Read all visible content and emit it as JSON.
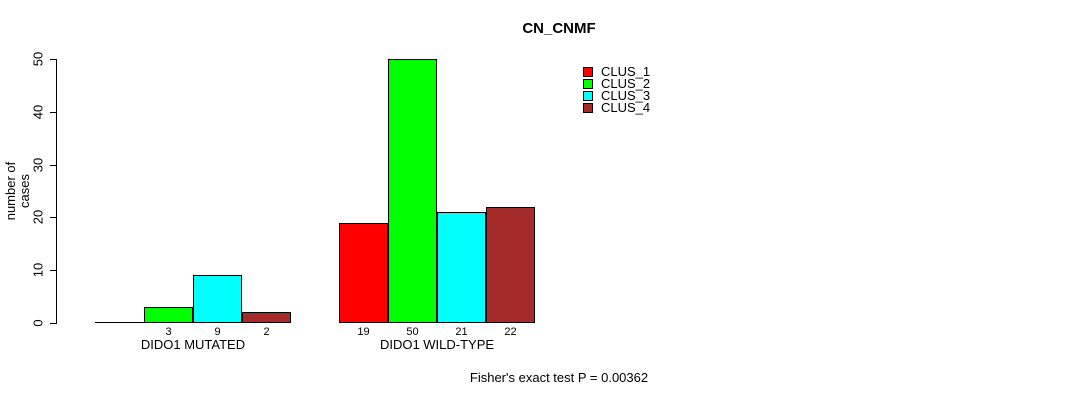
{
  "page": {
    "background": "#FFFFFF"
  },
  "header": {
    "title": "CN_CNMF"
  },
  "legend": {
    "items": [
      {
        "label": "CLUS_1",
        "color": "#FF0000"
      },
      {
        "label": "CLUS_2",
        "color": "#00FF00"
      },
      {
        "label": "CLUS_3",
        "color": "#00FFFF"
      },
      {
        "label": "CLUS_4",
        "color": "#A52A2A"
      }
    ]
  },
  "footer": {
    "caption": "Fisher's exact test P = 0.00362"
  },
  "chart_data": {
    "type": "bar",
    "title": "CN_CNMF",
    "xlabel": "",
    "ylabel": "number of cases",
    "ylim": [
      0,
      50
    ],
    "yticks": [
      0,
      10,
      20,
      30,
      40,
      50
    ],
    "grid": false,
    "legend_position": "top-right",
    "categories": [
      "DIDO1 MUTATED",
      "DIDO1 WILD-TYPE"
    ],
    "series": [
      {
        "name": "CLUS_1",
        "color": "#FF0000",
        "values": [
          0,
          19
        ]
      },
      {
        "name": "CLUS_2",
        "color": "#00FF00",
        "values": [
          3,
          50
        ]
      },
      {
        "name": "CLUS_3",
        "color": "#00FFFF",
        "values": [
          9,
          21
        ]
      },
      {
        "name": "CLUS_4",
        "color": "#A52A2A",
        "values": [
          2,
          22
        ]
      }
    ],
    "bar_value_labels": [
      [
        "",
        "3",
        "9",
        "2"
      ],
      [
        "19",
        "50",
        "21",
        "22"
      ]
    ],
    "bar_border_color": "#000000",
    "annotation": "Fisher's exact test P = 0.00362"
  }
}
